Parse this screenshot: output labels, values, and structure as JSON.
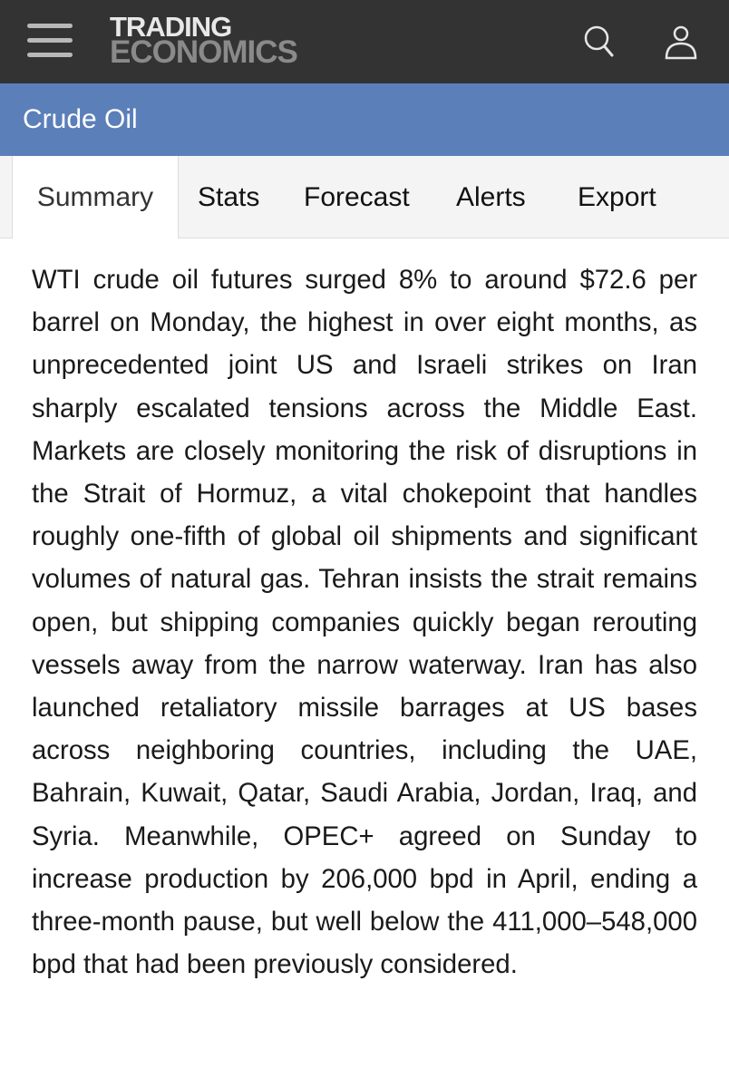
{
  "header": {
    "logo_line1": "TRADING",
    "logo_line2": "ECONOMICS",
    "icons": [
      "menu-icon",
      "search-icon",
      "user-icon"
    ]
  },
  "title": "Crude Oil",
  "tabs": [
    {
      "label": "Summary",
      "active": true
    },
    {
      "label": "Stats"
    },
    {
      "label": "Forecast"
    },
    {
      "label": "Alerts"
    },
    {
      "label": "Export"
    }
  ],
  "summary": "WTI crude oil futures surged 8% to around $72.6 per barrel on Monday, the highest in over eight months, as unprecedented joint US and Israeli strikes on Iran sharply escalated tensions across the Middle East. Markets are closely monitoring the risk of disruptions in the Strait of Hormuz, a vital chokepoint that handles roughly one-fifth of global oil shipments and significant volumes of natural gas. Tehran insists the strait remains open, but shipping companies quickly began rerouting vessels away from the narrow waterway. Iran has also launched retaliatory missile barrages at US bases across neighboring countries, including the UAE, Bahrain, Kuwait, Qatar, Saudi Arabia, Jordan, Iraq, and Syria. Meanwhile, OPEC+ agreed on Sunday to increase production by 206,000 bpd in April, ending a three-month pause, but well below the 411,000–548,000 bpd that had been previously considered.",
  "colors": {
    "topbar": "#333333",
    "titlebar": "#5b7fb9",
    "tabs_bg": "#f4f4f4"
  }
}
